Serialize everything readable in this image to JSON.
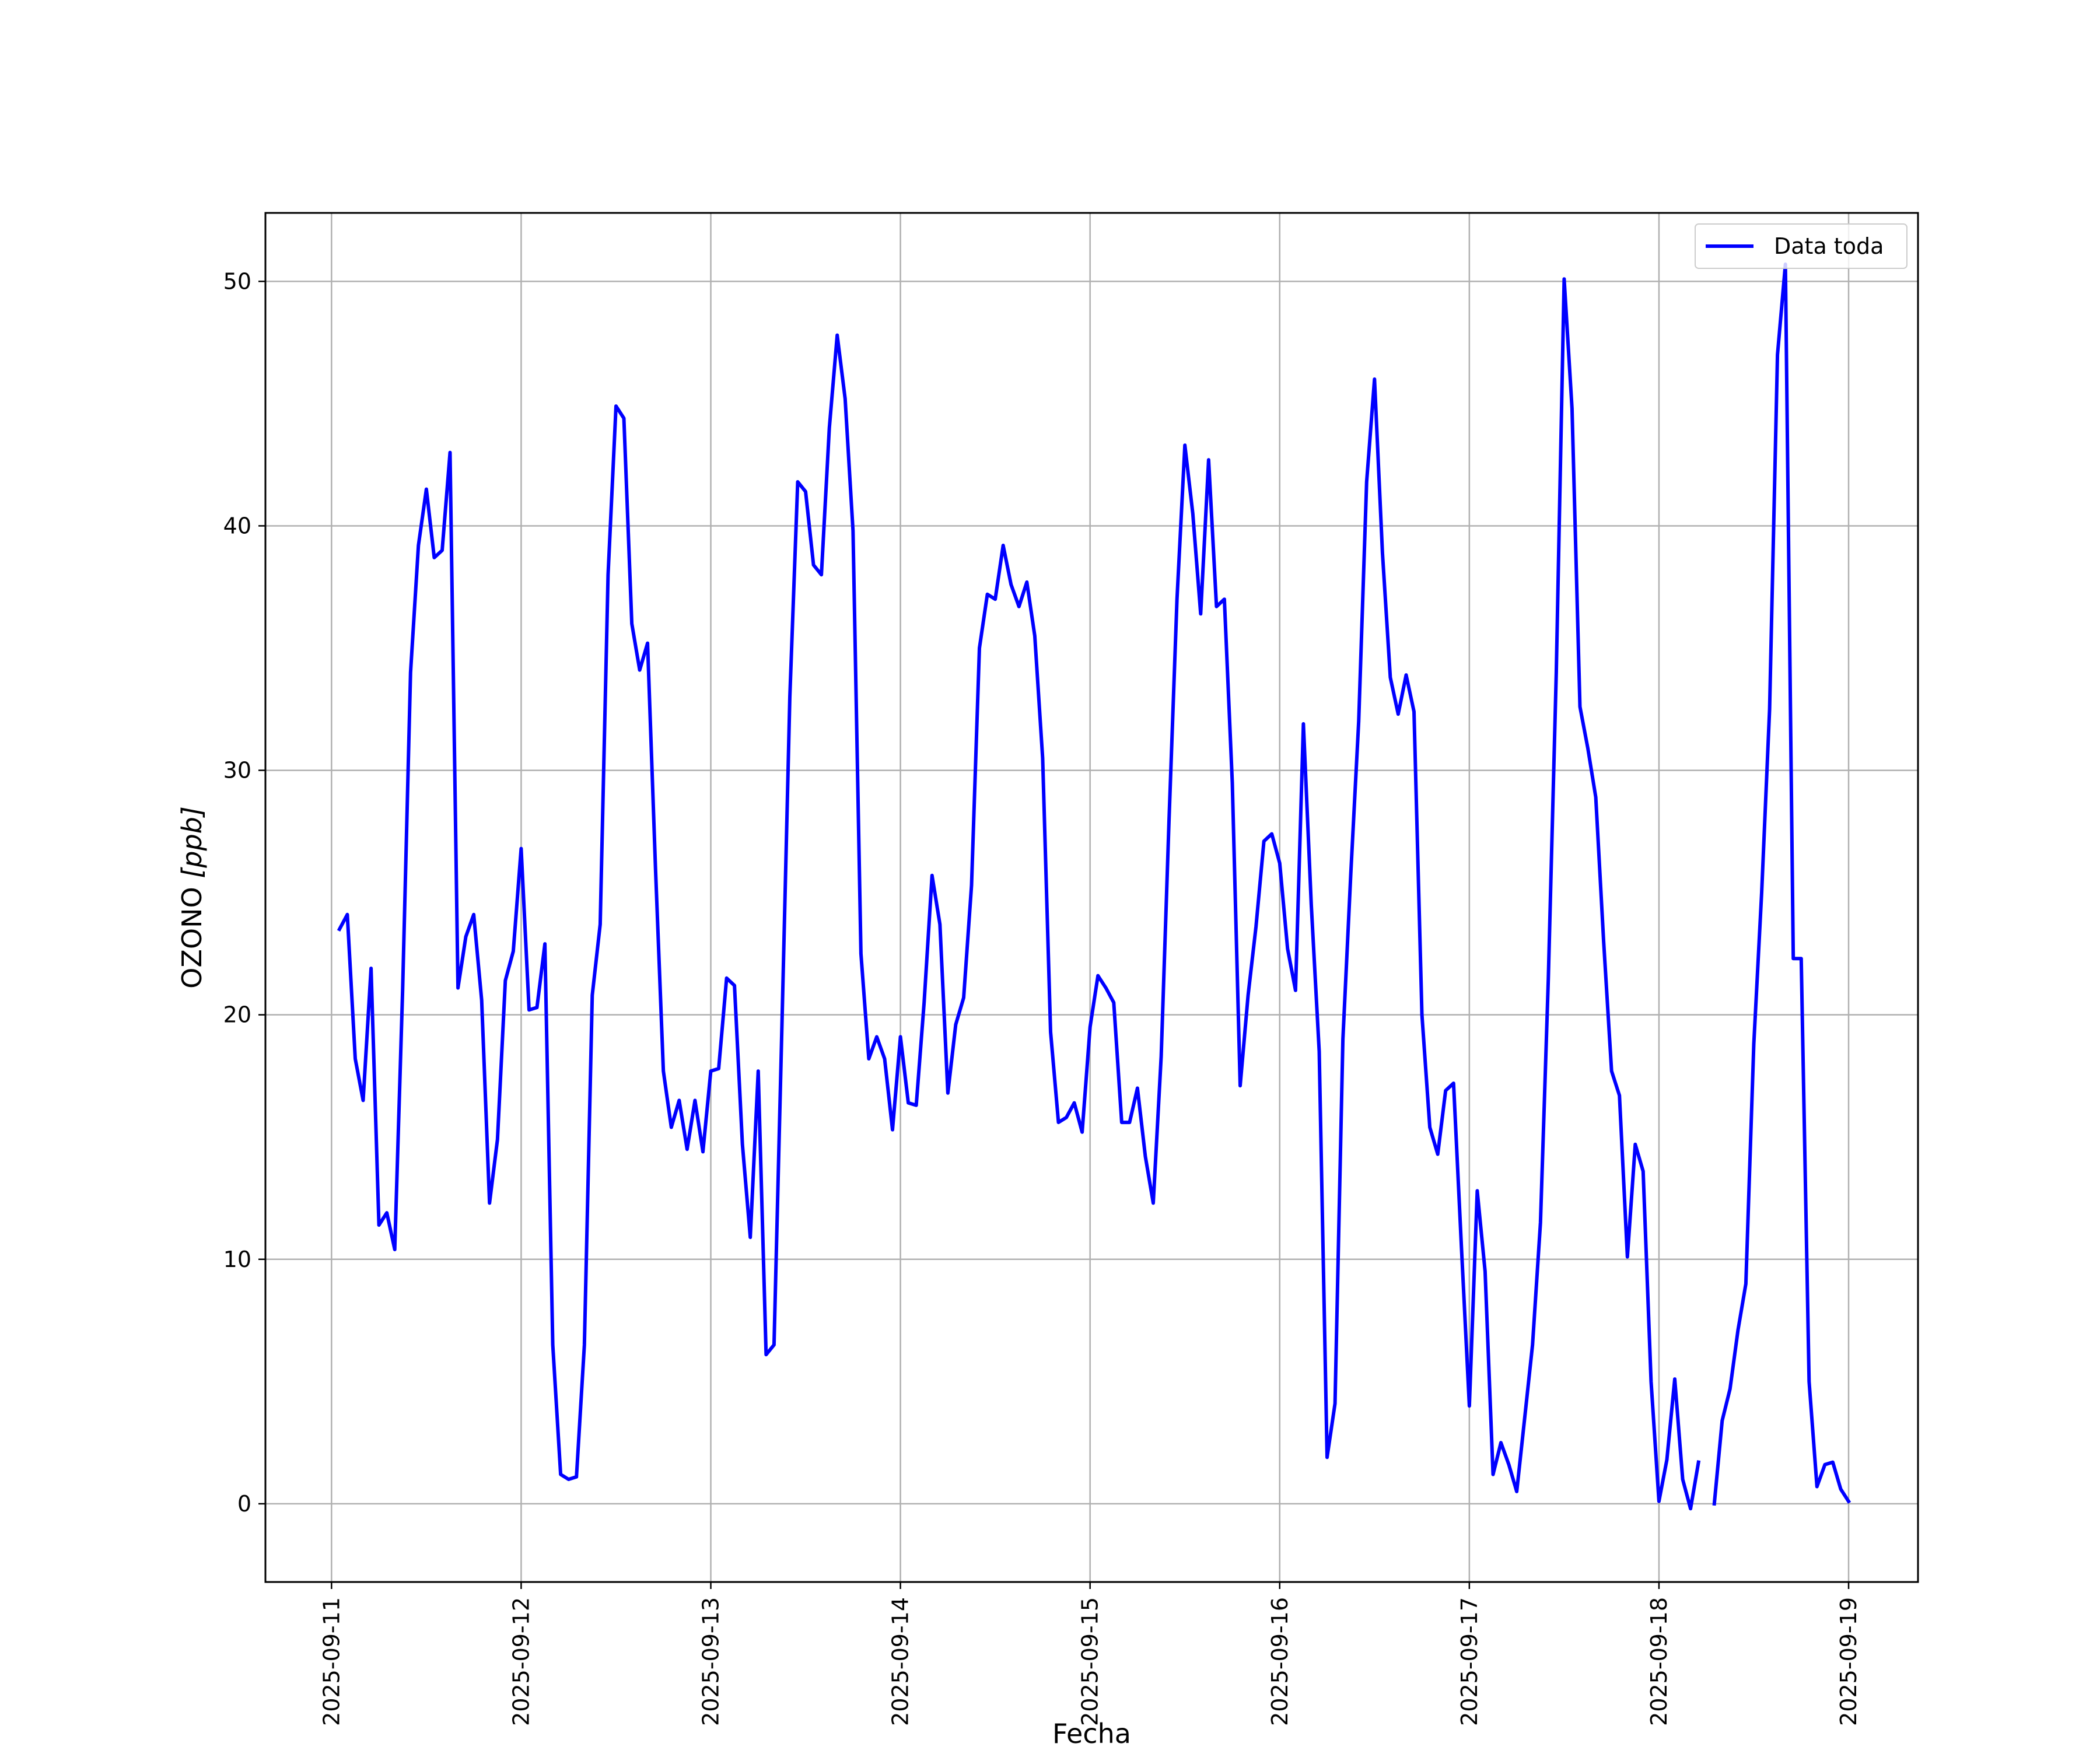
{
  "chart_data": {
    "type": "line",
    "title": "",
    "xlabel": "Fecha",
    "ylabel": "OZONO [ppb]",
    "ylabel_main": "OZONO ",
    "ylabel_unit": "[ppb]",
    "xlim": [
      "2025-09-10T15:38",
      "2025-09-19T08:47"
    ],
    "ylim": [
      -3.2,
      52.8
    ],
    "grid": true,
    "legend_position": "top-right",
    "x_ticks": [
      "2025-09-11",
      "2025-09-12",
      "2025-09-13",
      "2025-09-14",
      "2025-09-15",
      "2025-09-16",
      "2025-09-17",
      "2025-09-18",
      "2025-09-19"
    ],
    "y_ticks": [
      0,
      10,
      20,
      30,
      40,
      50
    ],
    "colors": {
      "series": "#0000ff",
      "grid": "#b0b0b0",
      "axes": "#000000"
    },
    "series": [
      {
        "name": "Data toda",
        "x": [
          "2025-09-11T01:00",
          "2025-09-11T02:00",
          "2025-09-11T03:00",
          "2025-09-11T04:00",
          "2025-09-11T05:00",
          "2025-09-11T06:00",
          "2025-09-11T07:00",
          "2025-09-11T08:00",
          "2025-09-11T09:00",
          "2025-09-11T10:00",
          "2025-09-11T11:00",
          "2025-09-11T12:00",
          "2025-09-11T13:00",
          "2025-09-11T14:00",
          "2025-09-11T15:00",
          "2025-09-11T16:00",
          "2025-09-11T17:00",
          "2025-09-11T18:00",
          "2025-09-11T19:00",
          "2025-09-11T20:00",
          "2025-09-11T21:00",
          "2025-09-11T22:00",
          "2025-09-11T23:00",
          "2025-09-12T00:00",
          "2025-09-12T01:00",
          "2025-09-12T02:00",
          "2025-09-12T03:00",
          "2025-09-12T04:00",
          "2025-09-12T05:00",
          "2025-09-12T06:00",
          "2025-09-12T07:00",
          "2025-09-12T08:00",
          "2025-09-12T09:00",
          "2025-09-12T10:00",
          "2025-09-12T11:00",
          "2025-09-12T12:00",
          "2025-09-12T13:00",
          "2025-09-12T14:00",
          "2025-09-12T15:00",
          "2025-09-12T16:00",
          "2025-09-12T17:00",
          "2025-09-12T18:00",
          "2025-09-12T19:00",
          "2025-09-12T20:00",
          "2025-09-12T21:00",
          "2025-09-12T22:00",
          "2025-09-12T23:00",
          "2025-09-13T00:00",
          "2025-09-13T01:00",
          "2025-09-13T02:00",
          "2025-09-13T03:00",
          "2025-09-13T04:00",
          "2025-09-13T05:00",
          "2025-09-13T06:00",
          "2025-09-13T07:00",
          "2025-09-13T08:00",
          "2025-09-13T09:00",
          "2025-09-13T10:00",
          "2025-09-13T11:00",
          "2025-09-13T12:00",
          "2025-09-13T13:00",
          "2025-09-13T14:00",
          "2025-09-13T15:00",
          "2025-09-13T16:00",
          "2025-09-13T17:00",
          "2025-09-13T18:00",
          "2025-09-13T19:00",
          "2025-09-13T20:00",
          "2025-09-13T21:00",
          "2025-09-13T22:00",
          "2025-09-13T23:00",
          "2025-09-14T00:00",
          "2025-09-14T01:00",
          "2025-09-14T02:00",
          "2025-09-14T03:00",
          "2025-09-14T04:00",
          "2025-09-14T05:00",
          "2025-09-14T06:00",
          "2025-09-14T07:00",
          "2025-09-14T08:00",
          "2025-09-14T09:00",
          "2025-09-14T10:00",
          "2025-09-14T11:00",
          "2025-09-14T12:00",
          "2025-09-14T13:00",
          "2025-09-14T14:00",
          "2025-09-14T15:00",
          "2025-09-14T16:00",
          "2025-09-14T17:00",
          "2025-09-14T18:00",
          "2025-09-14T19:00",
          "2025-09-14T20:00",
          "2025-09-14T21:00",
          "2025-09-14T22:00",
          "2025-09-14T23:00",
          "2025-09-15T00:00",
          "2025-09-15T01:00",
          "2025-09-15T02:00",
          "2025-09-15T03:00",
          "2025-09-15T04:00",
          "2025-09-15T05:00",
          "2025-09-15T06:00",
          "2025-09-15T07:00",
          "2025-09-15T08:00",
          "2025-09-15T09:00",
          "2025-09-15T10:00",
          "2025-09-15T11:00",
          "2025-09-15T12:00",
          "2025-09-15T13:00",
          "2025-09-15T14:00",
          "2025-09-15T15:00",
          "2025-09-15T16:00",
          "2025-09-15T17:00",
          "2025-09-15T18:00",
          "2025-09-15T19:00",
          "2025-09-15T20:00",
          "2025-09-15T21:00",
          "2025-09-15T22:00",
          "2025-09-15T23:00",
          "2025-09-16T00:00",
          "2025-09-16T01:00",
          "2025-09-16T02:00",
          "2025-09-16T03:00",
          "2025-09-16T04:00",
          "2025-09-16T05:00",
          "2025-09-16T06:00",
          "2025-09-16T07:00",
          "2025-09-16T08:00",
          "2025-09-16T09:00",
          "2025-09-16T10:00",
          "2025-09-16T11:00",
          "2025-09-16T12:00",
          "2025-09-16T13:00",
          "2025-09-16T14:00",
          "2025-09-16T15:00",
          "2025-09-16T16:00",
          "2025-09-16T17:00",
          "2025-09-16T18:00",
          "2025-09-16T19:00",
          "2025-09-16T20:00",
          "2025-09-16T21:00",
          "2025-09-16T22:00",
          "2025-09-16T23:00",
          "2025-09-17T00:00",
          "2025-09-17T01:00",
          "2025-09-17T02:00",
          "2025-09-17T03:00",
          "2025-09-17T04:00",
          "2025-09-17T05:00",
          "2025-09-17T06:00",
          "2025-09-17T07:00",
          "2025-09-17T08:00",
          "2025-09-17T09:00",
          "2025-09-17T10:00",
          "2025-09-17T11:00",
          "2025-09-17T12:00",
          "2025-09-17T13:00",
          "2025-09-17T14:00",
          "2025-09-17T15:00",
          "2025-09-17T16:00",
          "2025-09-17T17:00",
          "2025-09-17T18:00",
          "2025-09-17T19:00",
          "2025-09-17T20:00",
          "2025-09-17T21:00",
          "2025-09-17T22:00",
          "2025-09-17T23:00",
          "2025-09-18T00:00",
          "2025-09-18T01:00",
          "2025-09-18T02:00",
          "2025-09-18T03:00",
          "2025-09-18T04:00",
          "2025-09-18T05:00",
          "2025-09-18T06:00",
          "2025-09-18T07:00",
          "2025-09-18T08:00",
          "2025-09-18T09:00",
          "2025-09-18T10:00",
          "2025-09-18T11:00",
          "2025-09-18T12:00",
          "2025-09-18T13:00",
          "2025-09-18T14:00",
          "2025-09-18T15:00",
          "2025-09-18T16:00",
          "2025-09-18T17:00",
          "2025-09-18T18:00",
          "2025-09-18T19:00",
          "2025-09-18T20:00",
          "2025-09-18T21:00",
          "2025-09-18T22:00",
          "2025-09-18T23:00",
          "2025-09-19T00:00"
        ],
        "y": [
          23.5,
          24.1,
          18.2,
          16.5,
          21.9,
          11.4,
          11.9,
          10.4,
          21.0,
          34.0,
          39.2,
          41.5,
          38.7,
          39.0,
          43.0,
          21.1,
          23.2,
          24.1,
          20.6,
          12.3,
          14.9,
          21.4,
          22.6,
          26.8,
          20.2,
          20.3,
          22.9,
          6.5,
          1.2,
          1.0,
          1.1,
          6.5,
          20.8,
          23.7,
          38.0,
          44.9,
          44.4,
          36.0,
          34.1,
          35.2,
          26.0,
          17.7,
          15.4,
          16.5,
          14.5,
          16.5,
          14.4,
          17.7,
          17.8,
          21.5,
          21.2,
          14.7,
          10.9,
          17.7,
          6.1,
          6.5,
          19.5,
          33.0,
          41.8,
          41.4,
          38.4,
          38.0,
          44.0,
          47.8,
          45.2,
          39.8,
          22.5,
          18.2,
          19.1,
          18.2,
          15.3,
          19.1,
          16.4,
          16.3,
          20.5,
          25.7,
          23.7,
          16.8,
          19.6,
          20.7,
          25.3,
          35.0,
          37.2,
          37.0,
          39.2,
          37.6,
          36.7,
          37.7,
          35.5,
          30.5,
          19.3,
          15.6,
          15.8,
          16.4,
          15.2,
          19.5,
          21.6,
          21.1,
          20.5,
          15.6,
          15.6,
          17.0,
          14.2,
          12.3,
          18.3,
          28.0,
          37.0,
          43.3,
          40.5,
          36.4,
          42.7,
          36.7,
          37.0,
          29.5,
          17.1,
          20.8,
          23.6,
          27.1,
          27.4,
          26.2,
          22.7,
          21.0,
          31.9,
          24.5,
          18.5,
          1.9,
          4.1,
          19.0,
          25.8,
          32.0,
          41.8,
          46.0,
          38.9,
          33.8,
          32.3,
          33.9,
          32.4,
          20.0,
          15.4,
          14.3,
          16.9,
          17.2,
          10.5,
          4.0,
          12.8,
          9.5,
          1.2,
          2.5,
          1.6,
          0.5,
          3.5,
          6.5,
          11.5,
          21.5,
          34.0,
          50.1,
          44.8,
          32.6,
          30.9,
          28.9,
          23.0,
          17.7,
          16.7,
          10.1,
          14.7,
          13.6,
          5.0,
          0.1,
          1.8,
          5.1,
          1.0,
          -0.2,
          1.7,
          null,
          0.0,
          3.4,
          4.7,
          7.1,
          9.0,
          18.8,
          25.0,
          32.5,
          47.0,
          50.7,
          22.3,
          22.3,
          5.0,
          0.7,
          1.6,
          1.7,
          0.6,
          0.1
        ]
      }
    ]
  }
}
